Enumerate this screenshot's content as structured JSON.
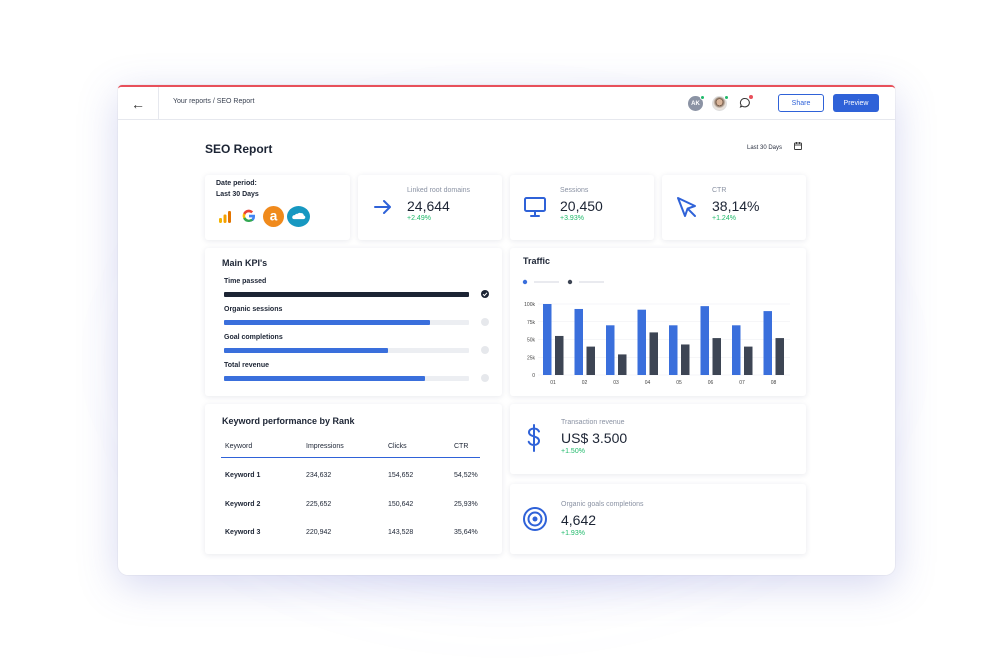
{
  "breadcrumb": "Your reports / SEO Report",
  "header": {
    "avatar_initials": "AK",
    "share_label": "Share",
    "preview_label": "Preview"
  },
  "page": {
    "title": "SEO Report",
    "date_range": "Last 30 Days"
  },
  "date_card": {
    "label": "Date period:",
    "value": "Last 30 Days",
    "integrations": [
      "google-analytics-icon",
      "google-icon",
      "amazon-icon",
      "salesforce-icon"
    ]
  },
  "metrics": {
    "linked_root_domains": {
      "label": "Linked root domains",
      "value": "24,644",
      "change": "+2.49%"
    },
    "sessions": {
      "label": "Sessions",
      "value": "20,450",
      "change": "+3.93%"
    },
    "ctr": {
      "label": "CTR",
      "value": "38,14%",
      "change": "+1.24%"
    },
    "transaction_revenue": {
      "label": "Transaction revenue",
      "value": "US$ 3.500",
      "change": "+1.50%"
    },
    "organic_goals": {
      "label": "Organic goals completions",
      "value": "4,642",
      "change": "+1.93%"
    }
  },
  "kpis": {
    "title": "Main KPI's",
    "items": [
      {
        "label": "Time passed",
        "progress": 1.0,
        "color": "#1c2434",
        "done": true
      },
      {
        "label": "Organic sessions",
        "progress": 0.84,
        "color": "#3a6fdc",
        "done": false
      },
      {
        "label": "Goal completions",
        "progress": 0.67,
        "color": "#3a6fdc",
        "done": false
      },
      {
        "label": "Total revenue",
        "progress": 0.82,
        "color": "#3a6fdc",
        "done": false
      }
    ]
  },
  "keywords": {
    "title": "Keyword performance by Rank",
    "columns": [
      "Keyword",
      "Impressions",
      "Clicks",
      "CTR"
    ],
    "rows": [
      [
        "Keyword 1",
        "234,632",
        "154,652",
        "54,52%"
      ],
      [
        "Keyword 2",
        "225,652",
        "150,642",
        "25,93%"
      ],
      [
        "Keyword 3",
        "220,942",
        "143,528",
        "35,64%"
      ]
    ]
  },
  "traffic": {
    "title": "Traffic"
  },
  "chart_data": {
    "type": "bar",
    "title": "Traffic",
    "categories": [
      "01",
      "02",
      "03",
      "04",
      "05",
      "06",
      "07",
      "08"
    ],
    "y_ticks": [
      "100k",
      "75k",
      "50k",
      "25k",
      "0"
    ],
    "ylim": [
      0,
      100000
    ],
    "grid": true,
    "series": [
      {
        "values": [
          100000,
          93000,
          70000,
          92000,
          70000,
          97000,
          70000,
          90000
        ],
        "color": "#3a6fdc"
      },
      {
        "values": [
          55000,
          40000,
          29000,
          60000,
          43000,
          52000,
          40000,
          52000
        ],
        "color": "#3d4554"
      }
    ]
  }
}
